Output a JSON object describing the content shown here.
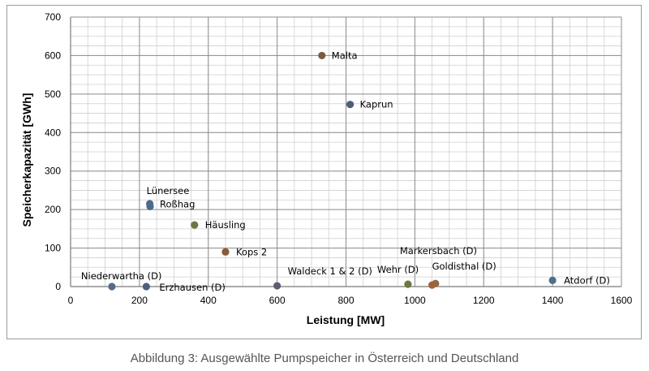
{
  "chart_data": {
    "type": "scatter",
    "xlabel": "Leistung [MW]",
    "ylabel": "Speicherkapazität [GWh]",
    "xlim": [
      0,
      1600
    ],
    "ylim": [
      0,
      700
    ],
    "x_ticks": [
      0,
      200,
      400,
      600,
      800,
      1000,
      1200,
      1400,
      1600
    ],
    "y_ticks": [
      0,
      100,
      200,
      300,
      400,
      500,
      600,
      700
    ],
    "grid": true,
    "points": [
      {
        "label": "Malta",
        "x": 730,
        "y": 600,
        "color": "#7a5c3e"
      },
      {
        "label": "Kaprun",
        "x": 812,
        "y": 473,
        "color": "#4c5e78"
      },
      {
        "label": "Lünersee",
        "x": 230,
        "y": 215,
        "color": "#4c6a8a"
      },
      {
        "label": "Roßhag",
        "x": 231,
        "y": 208,
        "color": "#4c6a8a"
      },
      {
        "label": "Häusling",
        "x": 360,
        "y": 160,
        "color": "#6f7542"
      },
      {
        "label": "Kops 2",
        "x": 450,
        "y": 90,
        "color": "#8a5a3a"
      },
      {
        "label": "Niederwartha (D)",
        "x": 120,
        "y": 0,
        "color": "#566a86"
      },
      {
        "label": "Erzhausen (D)",
        "x": 220,
        "y": 0,
        "color": "#50607a"
      },
      {
        "label": "Waldeck 1 & 2 (D)",
        "x": 600,
        "y": 2,
        "color": "#5a5e70"
      },
      {
        "label": "Wehr (D)",
        "x": 980,
        "y": 6,
        "color": "#6f7542"
      },
      {
        "label": "Markersbach (D)",
        "x": 1060,
        "y": 8,
        "color": "#8c6a45"
      },
      {
        "label": "Goldisthal (D)",
        "x": 1050,
        "y": 4,
        "color": "#a0613a"
      },
      {
        "label": "Atdorf (D)",
        "x": 1400,
        "y": 16,
        "color": "#4c6e8e"
      }
    ]
  },
  "caption": "Abbildung 3: Ausgewählte Pumpspeicher in Österreich und Deutschland"
}
